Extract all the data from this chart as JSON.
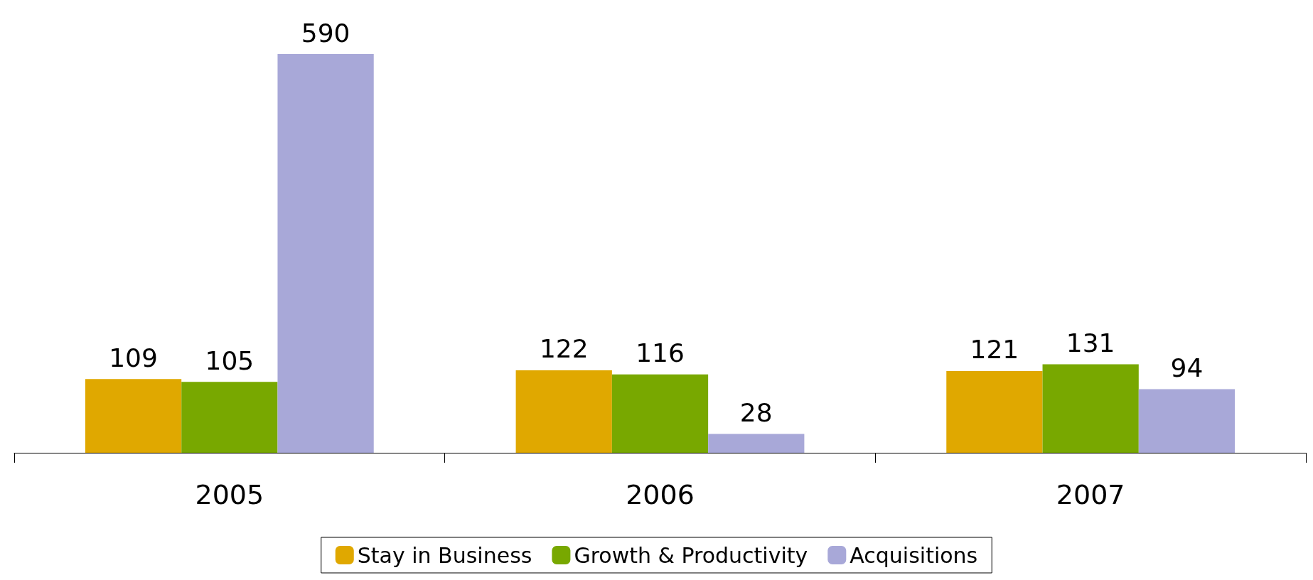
{
  "chart_data": {
    "type": "bar",
    "categories": [
      "2005",
      "2006",
      "2007"
    ],
    "series": [
      {
        "name": "Stay in Business",
        "color": "#e0a800",
        "values": [
          109,
          122,
          121
        ]
      },
      {
        "name": "Growth & Productivity",
        "color": "#78a800",
        "values": [
          105,
          116,
          131
        ]
      },
      {
        "name": "Acquisitions",
        "color": "#a8a8d8",
        "values": [
          590,
          28,
          94
        ]
      }
    ],
    "data_labels": true,
    "legend": "bottom"
  }
}
